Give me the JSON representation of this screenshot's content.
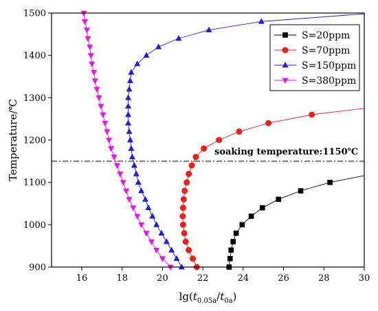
{
  "chart_data": {
    "type": "line",
    "xlabel": "lg(t0.05a/t0a)",
    "ylabel": "Temperature/℃",
    "xlim": [
      14.5,
      30
    ],
    "ylim": [
      900,
      1500
    ],
    "xticks": [
      16,
      18,
      20,
      22,
      24,
      26,
      28,
      30
    ],
    "yticks": [
      900,
      1000,
      1100,
      1200,
      1300,
      1400,
      1500
    ],
    "legend_position": "top-right",
    "annotation": {
      "text": "soaking temperature:1150℃",
      "y": 1150
    },
    "series": [
      {
        "name": "S=20ppm",
        "color": "#000000",
        "marker": "square",
        "points": [
          [
            23.3,
            900
          ],
          [
            23.35,
            920
          ],
          [
            23.4,
            940
          ],
          [
            23.5,
            960
          ],
          [
            23.65,
            980
          ],
          [
            23.95,
            1000
          ],
          [
            24.4,
            1020
          ],
          [
            24.95,
            1040
          ],
          [
            25.75,
            1060
          ],
          [
            26.85,
            1080
          ],
          [
            28.3,
            1100
          ],
          [
            30.0,
            1116
          ]
        ]
      },
      {
        "name": "S=70ppm",
        "color": "#e8211b",
        "marker": "circle",
        "points": [
          [
            21.7,
            900
          ],
          [
            21.5,
            920
          ],
          [
            21.3,
            940
          ],
          [
            21.15,
            960
          ],
          [
            21.08,
            980
          ],
          [
            21.02,
            1000
          ],
          [
            21.0,
            1020
          ],
          [
            21.02,
            1040
          ],
          [
            21.05,
            1060
          ],
          [
            21.1,
            1080
          ],
          [
            21.2,
            1100
          ],
          [
            21.3,
            1120
          ],
          [
            21.45,
            1140
          ],
          [
            21.65,
            1160
          ],
          [
            22.05,
            1180
          ],
          [
            22.8,
            1200
          ],
          [
            23.8,
            1220
          ],
          [
            25.25,
            1240
          ],
          [
            27.4,
            1260
          ],
          [
            30.0,
            1275
          ]
        ]
      },
      {
        "name": "S=150ppm",
        "color": "#1f1fd8",
        "marker": "triangle-up",
        "points": [
          [
            20.95,
            900
          ],
          [
            20.7,
            920
          ],
          [
            20.45,
            940
          ],
          [
            20.2,
            960
          ],
          [
            19.95,
            980
          ],
          [
            19.7,
            1000
          ],
          [
            19.5,
            1020
          ],
          [
            19.3,
            1040
          ],
          [
            19.15,
            1060
          ],
          [
            18.95,
            1080
          ],
          [
            18.8,
            1100
          ],
          [
            18.7,
            1120
          ],
          [
            18.6,
            1140
          ],
          [
            18.5,
            1160
          ],
          [
            18.45,
            1180
          ],
          [
            18.4,
            1200
          ],
          [
            18.35,
            1220
          ],
          [
            18.3,
            1240
          ],
          [
            18.3,
            1260
          ],
          [
            18.3,
            1280
          ],
          [
            18.3,
            1300
          ],
          [
            18.35,
            1320
          ],
          [
            18.4,
            1340
          ],
          [
            18.45,
            1360
          ],
          [
            18.75,
            1380
          ],
          [
            19.2,
            1400
          ],
          [
            19.8,
            1420
          ],
          [
            20.8,
            1440
          ],
          [
            22.3,
            1460
          ],
          [
            24.9,
            1480
          ],
          [
            30.0,
            1498
          ]
        ]
      },
      {
        "name": "S=380ppm",
        "color": "#ee11ee",
        "marker": "triangle-down",
        "points": [
          [
            20.4,
            900
          ],
          [
            20.0,
            920
          ],
          [
            19.7,
            940
          ],
          [
            19.45,
            960
          ],
          [
            19.2,
            980
          ],
          [
            18.95,
            1000
          ],
          [
            18.75,
            1020
          ],
          [
            18.55,
            1040
          ],
          [
            18.35,
            1060
          ],
          [
            18.2,
            1080
          ],
          [
            18.05,
            1100
          ],
          [
            17.9,
            1120
          ],
          [
            17.75,
            1140
          ],
          [
            17.6,
            1160
          ],
          [
            17.45,
            1180
          ],
          [
            17.35,
            1200
          ],
          [
            17.25,
            1220
          ],
          [
            17.15,
            1240
          ],
          [
            17.05,
            1260
          ],
          [
            16.95,
            1280
          ],
          [
            16.85,
            1300
          ],
          [
            16.75,
            1320
          ],
          [
            16.65,
            1340
          ],
          [
            16.6,
            1360
          ],
          [
            16.5,
            1380
          ],
          [
            16.45,
            1400
          ],
          [
            16.4,
            1420
          ],
          [
            16.3,
            1440
          ],
          [
            16.25,
            1460
          ],
          [
            16.15,
            1480
          ],
          [
            16.1,
            1500
          ]
        ]
      }
    ]
  }
}
